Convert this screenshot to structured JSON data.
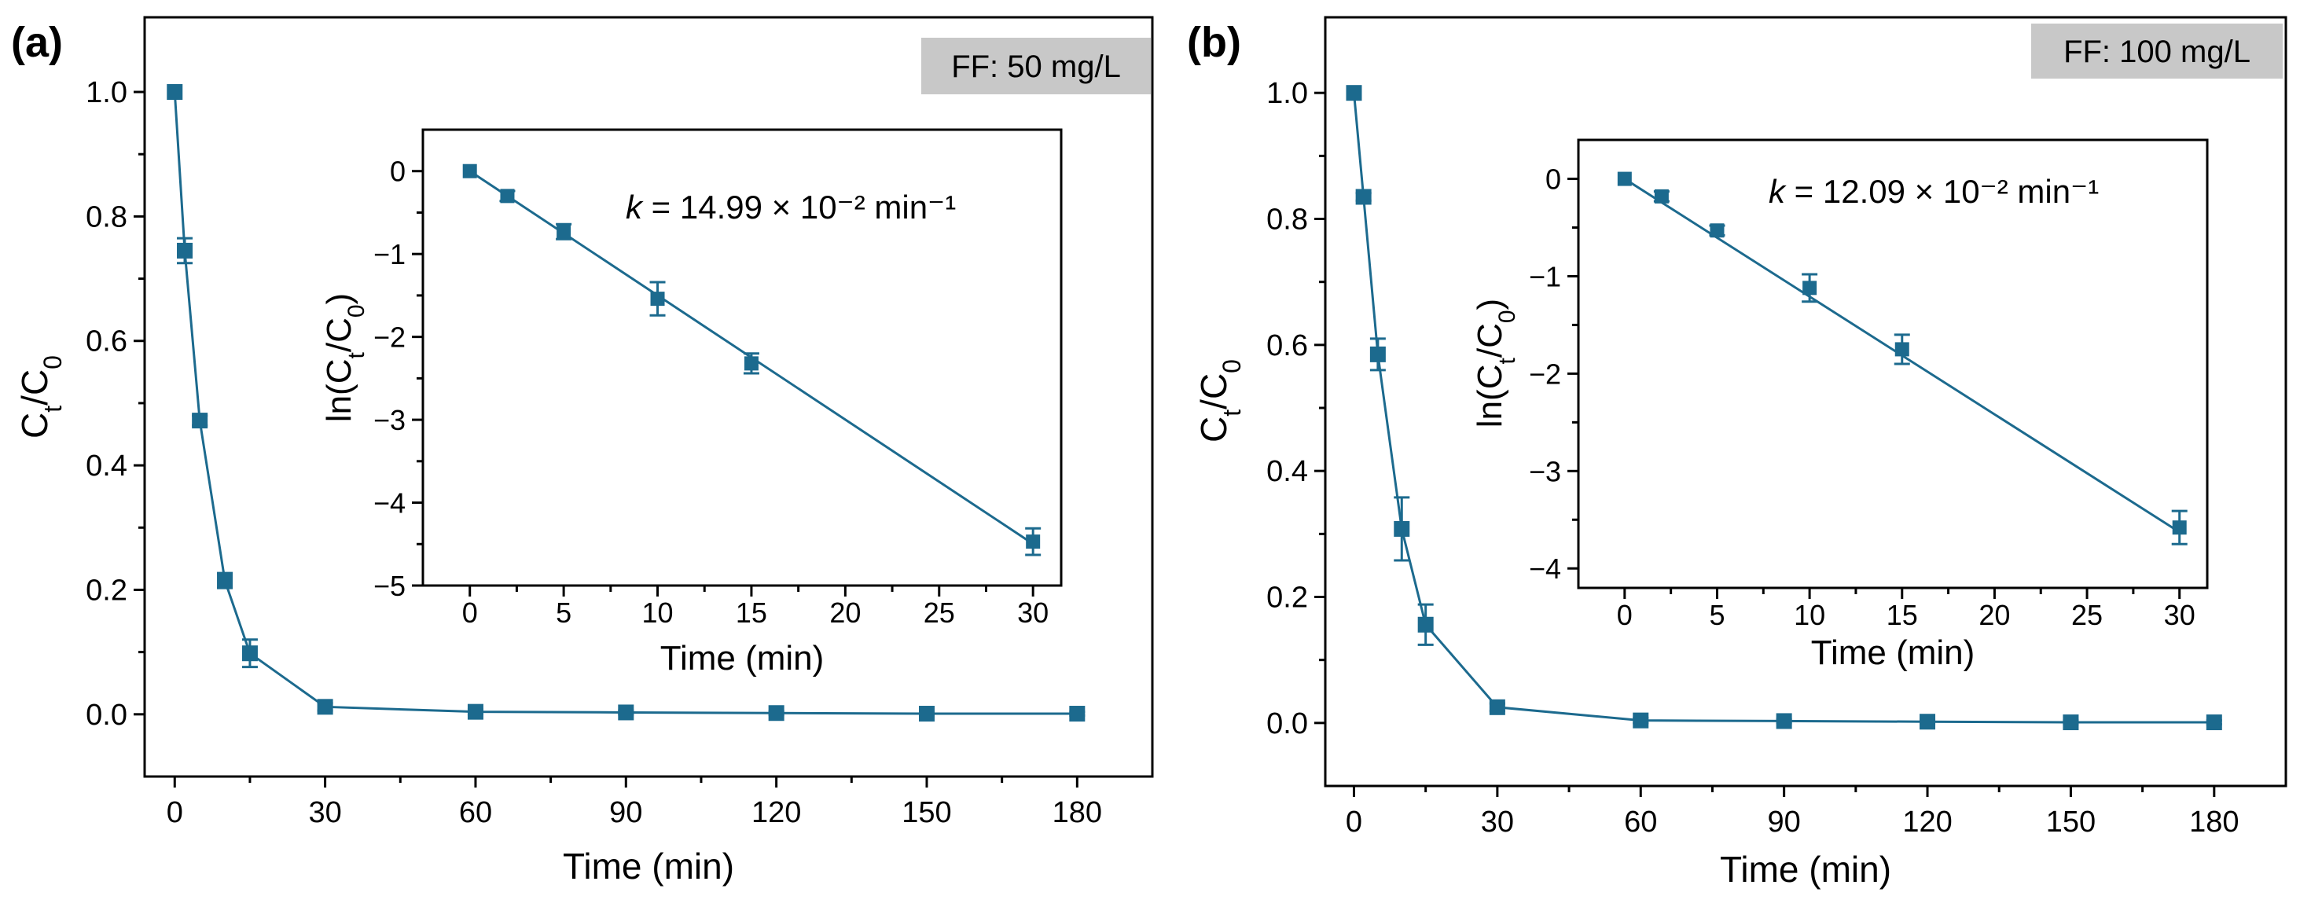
{
  "figure": {
    "color": "#1c6a8e",
    "note_bg": "#c8c8c8",
    "panels": [
      {
        "letter": "(a)",
        "note": "FF: 50 mg/L",
        "k_text": " = 14.99 × 10⁻² min⁻¹"
      },
      {
        "letter": "(b)",
        "note": "FF: 100 mg/L",
        "k_text": " = 12.09 × 10⁻² min⁻¹"
      }
    ]
  },
  "chart_data": [
    {
      "type": "line",
      "panel": "a",
      "title": "",
      "xlabel": "Time (min)",
      "ylabel": "Ct/C0",
      "xlim": [
        -6,
        195
      ],
      "ylim": [
        -0.1,
        1.12
      ],
      "xticks": [
        0,
        30,
        60,
        90,
        120,
        150,
        180
      ],
      "yticks": [
        0.0,
        0.2,
        0.4,
        0.6,
        0.8,
        1.0
      ],
      "series": [
        {
          "name": "Ct/C0",
          "x": [
            0,
            2,
            5,
            10,
            15,
            30,
            60,
            90,
            120,
            150,
            180
          ],
          "values": [
            1.0,
            0.745,
            0.472,
            0.215,
            0.098,
            0.012,
            0.004,
            0.003,
            0.002,
            0.001,
            0.001
          ],
          "errors": [
            0,
            0.02,
            0.008,
            0.012,
            0.022,
            0.006,
            0.004,
            0.003,
            0.003,
            0.003,
            0.003
          ]
        }
      ],
      "inset": {
        "type": "scatter",
        "xlabel": "Time (min)",
        "ylabel": "ln(Ct/C0)",
        "xlim": [
          -2.5,
          31.5
        ],
        "ylim": [
          -5,
          0.5
        ],
        "xticks": [
          0,
          5,
          10,
          15,
          20,
          25,
          30
        ],
        "yticks": [
          0,
          -1,
          -2,
          -3,
          -4,
          -5
        ],
        "k": "k = 14.99 × 10⁻² min⁻¹",
        "fit": {
          "slope": -0.1499,
          "intercept": 0,
          "x_range": [
            0,
            30
          ]
        },
        "series": [
          {
            "name": "ln(Ct/C0)",
            "x": [
              0,
              2,
              5,
              10,
              15,
              30
            ],
            "values": [
              0,
              -0.3,
              -0.73,
              -1.54,
              -2.32,
              -4.47
            ],
            "errors": [
              0,
              0.06,
              0.09,
              0.2,
              0.12,
              0.16
            ]
          }
        ]
      }
    },
    {
      "type": "line",
      "panel": "b",
      "title": "",
      "xlabel": "Time (min)",
      "ylabel": "Ct/C0",
      "xlim": [
        -6,
        195
      ],
      "ylim": [
        -0.1,
        1.12
      ],
      "xticks": [
        0,
        30,
        60,
        90,
        120,
        150,
        180
      ],
      "yticks": [
        0.0,
        0.2,
        0.4,
        0.6,
        0.8,
        1.0
      ],
      "series": [
        {
          "name": "Ct/C0",
          "x": [
            0,
            2,
            5,
            10,
            15,
            30,
            60,
            90,
            120,
            150,
            180
          ],
          "values": [
            1.0,
            0.835,
            0.585,
            0.308,
            0.156,
            0.025,
            0.004,
            0.003,
            0.002,
            0.001,
            0.001
          ],
          "errors": [
            0,
            0.006,
            0.025,
            0.05,
            0.032,
            0.006,
            0.004,
            0.003,
            0.003,
            0.003,
            0.003
          ]
        }
      ],
      "inset": {
        "type": "scatter",
        "xlabel": "Time (min)",
        "ylabel": "ln(Ct/C0)",
        "xlim": [
          -2.5,
          31.5
        ],
        "ylim": [
          -4.2,
          0.4
        ],
        "xticks": [
          0,
          5,
          10,
          15,
          20,
          25,
          30
        ],
        "yticks": [
          0,
          -1,
          -2,
          -3,
          -4
        ],
        "k": "k = 12.09 × 10⁻² min⁻¹",
        "fit": {
          "slope": -0.1209,
          "intercept": 0,
          "x_range": [
            0,
            30
          ]
        },
        "series": [
          {
            "name": "ln(Ct/C0)",
            "x": [
              0,
              2,
              5,
              10,
              15,
              30
            ],
            "values": [
              0,
              -0.18,
              -0.53,
              -1.12,
              -1.75,
              -3.58
            ],
            "errors": [
              0,
              0.05,
              0.05,
              0.14,
              0.15,
              0.17
            ]
          }
        ]
      }
    }
  ]
}
